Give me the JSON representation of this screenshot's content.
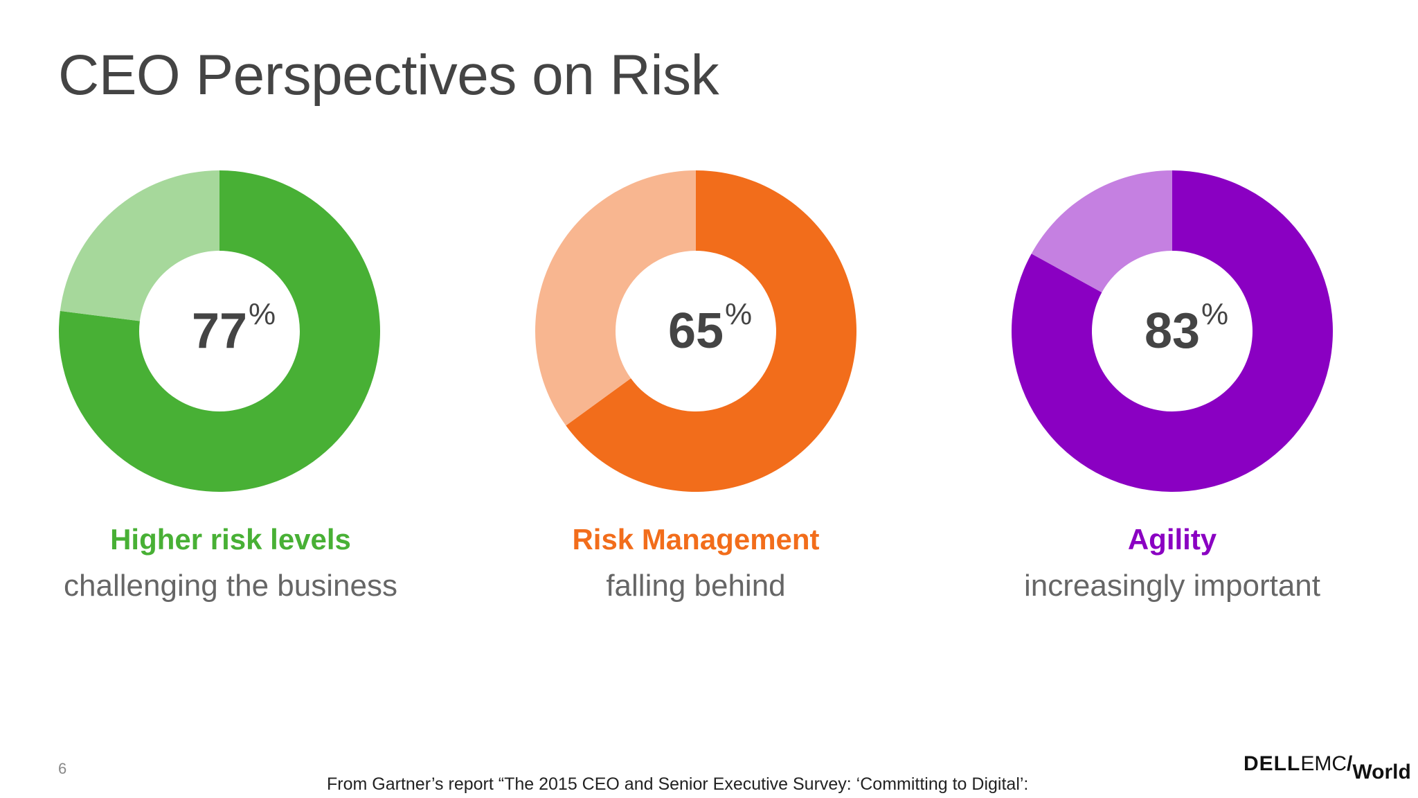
{
  "title": "CEO Perspectives  on Risk",
  "chart_data": [
    {
      "type": "pie",
      "donut": true,
      "value": 77,
      "value_label": "77",
      "percent_sign": "%",
      "label": "Higher risk levels",
      "sublabel": "challenging  the business",
      "colors": {
        "primary": "#48b035",
        "remainder": "#a6d89b",
        "label": "#48b035"
      }
    },
    {
      "type": "pie",
      "donut": true,
      "value": 65,
      "value_label": "65",
      "percent_sign": "%",
      "label": "Risk Management",
      "sublabel": "falling behind",
      "colors": {
        "primary": "#f26d1b",
        "remainder": "#f8b690",
        "label": "#f26d1b"
      }
    },
    {
      "type": "pie",
      "donut": true,
      "value": 83,
      "value_label": "83",
      "percent_sign": "%",
      "label": "Agility",
      "sublabel": "increasingly  important",
      "colors": {
        "primary": "#8a00c2",
        "remainder": "#c580e1",
        "label": "#8a00c2"
      }
    }
  ],
  "footer": {
    "page_number": "6",
    "source": "From Gartner’s report “The 2015  CEO and Senior Executive  Survey:  ‘Committing to Digital’:",
    "logo": {
      "brand": "DELL",
      "product": "EMC",
      "slash": "/",
      "event": "World"
    }
  }
}
